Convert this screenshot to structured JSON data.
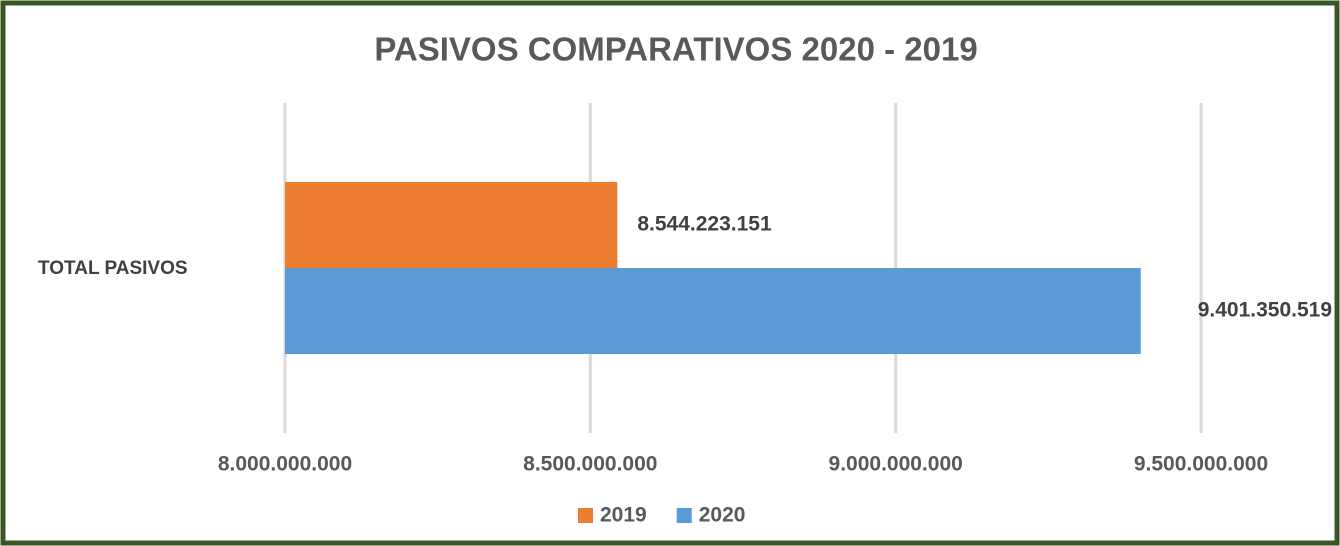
{
  "chart_data": {
    "type": "bar",
    "orientation": "horizontal",
    "title": "PASIVOS COMPARATIVOS 2020 - 2019",
    "categories": [
      "TOTAL PASIVOS"
    ],
    "series": [
      {
        "name": "2019",
        "color": "#ed7d31",
        "values": [
          8544223151
        ],
        "value_labels": [
          "8.544.223.151"
        ]
      },
      {
        "name": "2020",
        "color": "#5b9bd5",
        "values": [
          9401350519
        ],
        "value_labels": [
          "9.401.350.519"
        ]
      }
    ],
    "xlim": [
      8000000000,
      9500000000
    ],
    "xticks": [
      {
        "value": 8000000000,
        "label": "8.000.000.000"
      },
      {
        "value": 8500000000,
        "label": "8.500.000.000"
      },
      {
        "value": 9000000000,
        "label": "9.000.000.000"
      },
      {
        "value": 9500000000,
        "label": "9.500.000.000"
      }
    ],
    "grid": true,
    "legend": "bottom"
  }
}
